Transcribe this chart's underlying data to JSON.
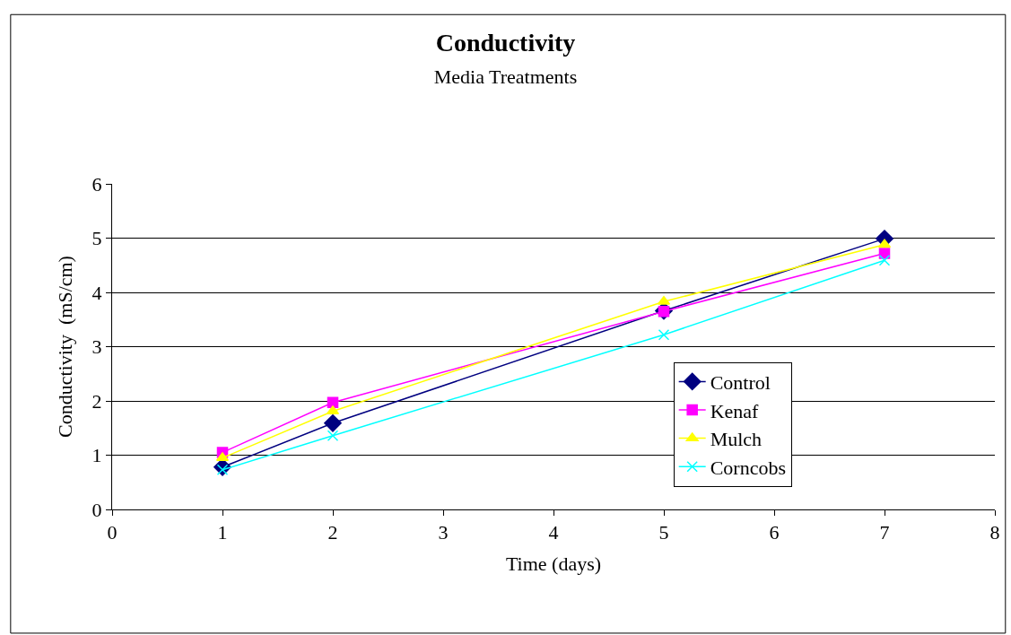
{
  "chart_data": {
    "type": "line",
    "title": "Conductivity",
    "subtitle": "Media Treatments",
    "xlabel": "Time (days)",
    "ylabel": "Conductivity  (mS/cm)",
    "x": [
      1,
      2,
      5,
      7
    ],
    "series": [
      {
        "name": "Control",
        "color": "#000080",
        "marker": "diamond",
        "values": [
          0.78,
          1.59,
          3.66,
          4.99
        ]
      },
      {
        "name": "Kenaf",
        "color": "#ff00ff",
        "marker": "square",
        "values": [
          1.05,
          1.97,
          3.65,
          4.72
        ]
      },
      {
        "name": "Mulch",
        "color": "#ffff00",
        "marker": "triangle",
        "values": [
          0.95,
          1.81,
          3.83,
          4.88
        ]
      },
      {
        "name": "Corncobs",
        "color": "#00ffff",
        "marker": "cross",
        "values": [
          0.73,
          1.36,
          3.22,
          4.59
        ]
      }
    ],
    "xlim": [
      0,
      8
    ],
    "xticks": [
      0,
      1,
      2,
      3,
      4,
      5,
      6,
      7,
      8
    ],
    "ylim": [
      0,
      6
    ],
    "yticks": [
      0,
      1,
      2,
      3,
      4,
      5,
      6
    ],
    "grid": "y",
    "legend": "bottom right",
    "line_style": "solid"
  }
}
